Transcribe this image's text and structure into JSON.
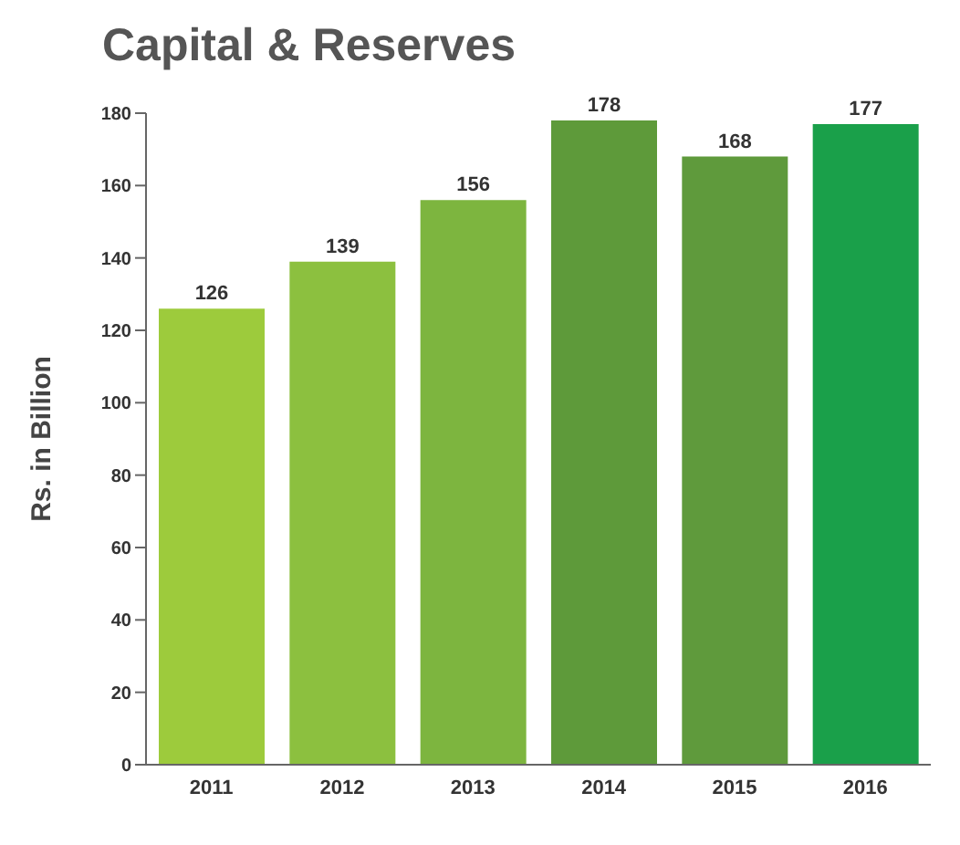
{
  "chart_data": {
    "type": "bar",
    "title": "Capital & Reserves",
    "ylabel": "Rs. in Billion",
    "categories": [
      "2011",
      "2012",
      "2013",
      "2014",
      "2015",
      "2016"
    ],
    "values": [
      126,
      139,
      156,
      178,
      168,
      177
    ],
    "colors": [
      "#9dcb3c",
      "#8cc03f",
      "#7db53f",
      "#5e9a3a",
      "#5f9a3c",
      "#1aa04a"
    ],
    "ylim": [
      0,
      180
    ],
    "yticks": [
      0,
      20,
      40,
      60,
      80,
      100,
      120,
      140,
      160,
      180
    ],
    "grid": false,
    "data_labels": true
  }
}
